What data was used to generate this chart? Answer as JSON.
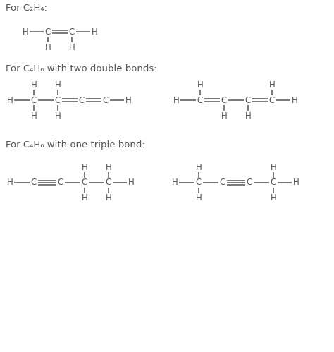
{
  "bg_color": "#ffffff",
  "text_color": "#555555",
  "bond_color": "#555555",
  "font_size": 8.5,
  "title_font_size": 9.5,
  "fig_width": 4.74,
  "fig_height": 4.99,
  "titles": {
    "t1": "For C₂H₄:",
    "t2": "For C₄H₆ with two double bonds:",
    "t3": "For C₄H₆ with one triple bond:"
  }
}
